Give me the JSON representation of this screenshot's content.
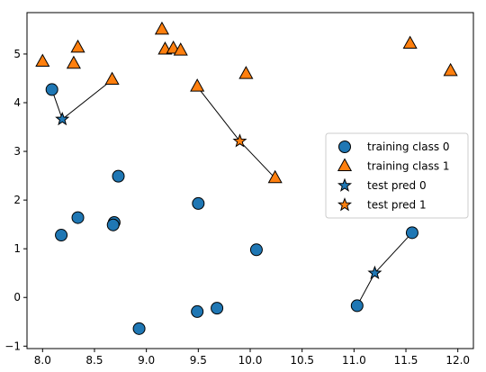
{
  "chart_data": {
    "type": "scatter",
    "xlim": [
      7.85,
      12.15
    ],
    "ylim": [
      -1.05,
      5.85
    ],
    "xticks": [
      8.0,
      8.5,
      9.0,
      9.5,
      10.0,
      10.5,
      11.0,
      11.5,
      12.0
    ],
    "xtick_labels": [
      "8.0",
      "8.5",
      "9.0",
      "9.5",
      "10.0",
      "10.5",
      "11.0",
      "11.5",
      "12.0"
    ],
    "yticks": [
      -1,
      0,
      1,
      2,
      3,
      4,
      5
    ],
    "ytick_labels": [
      "−1",
      "0",
      "1",
      "2",
      "3",
      "4",
      "5"
    ],
    "grid": false,
    "legend_position": "center-right",
    "colors": {
      "class0": "#1f77b4",
      "class1": "#ff7f0e",
      "edge": "#000000"
    },
    "series": [
      {
        "name": "training class 0",
        "marker": "circle",
        "color": "#1f77b4",
        "points": [
          [
            8.09,
            4.27
          ],
          [
            8.73,
            2.49
          ],
          [
            8.34,
            1.64
          ],
          [
            8.69,
            1.54
          ],
          [
            8.68,
            1.49
          ],
          [
            8.18,
            1.28
          ],
          [
            9.5,
            1.93
          ],
          [
            10.06,
            0.98
          ],
          [
            11.56,
            1.33
          ],
          [
            11.03,
            -0.17
          ],
          [
            9.68,
            -0.22
          ],
          [
            9.49,
            -0.29
          ],
          [
            8.93,
            -0.64
          ]
        ]
      },
      {
        "name": "training class 1",
        "marker": "triangle",
        "color": "#ff7f0e",
        "points": [
          [
            8.0,
            4.84
          ],
          [
            8.3,
            4.8
          ],
          [
            8.34,
            5.13
          ],
          [
            8.67,
            4.47
          ],
          [
            9.15,
            5.5
          ],
          [
            9.18,
            5.09
          ],
          [
            9.26,
            5.11
          ],
          [
            9.33,
            5.07
          ],
          [
            9.49,
            4.33
          ],
          [
            9.96,
            4.59
          ],
          [
            10.24,
            2.45
          ],
          [
            11.54,
            5.21
          ],
          [
            11.93,
            4.65
          ]
        ]
      },
      {
        "name": "test pred 0",
        "marker": "star",
        "color": "#1f77b4",
        "points": [
          [
            8.19,
            3.66
          ],
          [
            11.2,
            0.5
          ]
        ]
      },
      {
        "name": "test pred 1",
        "marker": "star",
        "color": "#ff7f0e",
        "points": [
          [
            9.9,
            3.21
          ]
        ]
      }
    ],
    "neighbor_lines": [
      {
        "from": [
          8.19,
          3.66
        ],
        "to": [
          8.09,
          4.27
        ]
      },
      {
        "from": [
          8.19,
          3.66
        ],
        "to": [
          8.67,
          4.47
        ]
      },
      {
        "from": [
          11.2,
          0.5
        ],
        "to": [
          11.56,
          1.33
        ]
      },
      {
        "from": [
          11.2,
          0.5
        ],
        "to": [
          11.03,
          -0.17
        ]
      },
      {
        "from": [
          9.9,
          3.21
        ],
        "to": [
          9.49,
          4.33
        ]
      },
      {
        "from": [
          9.9,
          3.21
        ],
        "to": [
          10.24,
          2.45
        ]
      }
    ]
  }
}
